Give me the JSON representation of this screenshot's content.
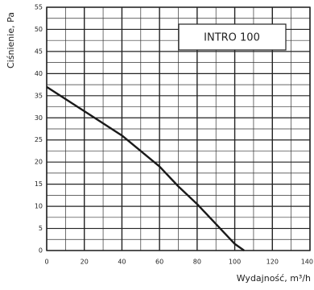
{
  "chart_data": {
    "type": "line",
    "annotation": "INTRO 100",
    "x_label": "Wydajność, m³/h",
    "y_label": "Ciśnienie, Pa",
    "x": [
      0,
      20,
      40,
      50,
      60,
      70,
      80,
      90,
      100,
      105
    ],
    "series": [
      {
        "name": "INTRO 100",
        "color": "#1a1a1a",
        "values": [
          37,
          31.5,
          26,
          22.5,
          19,
          14.5,
          10.5,
          6,
          1.5,
          0
        ]
      }
    ],
    "xlim": [
      0,
      140
    ],
    "xticks": [
      0,
      20,
      40,
      60,
      80,
      100,
      120,
      140
    ],
    "ylim": [
      0,
      55
    ],
    "yticks": [
      0,
      5,
      10,
      15,
      20,
      25,
      30,
      35,
      40,
      45,
      50,
      55
    ],
    "grid": true
  }
}
